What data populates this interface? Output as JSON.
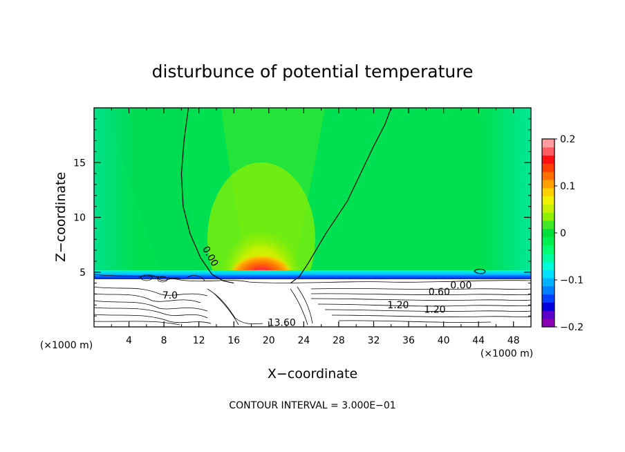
{
  "chart_data": {
    "type": "heatmap",
    "title": "disturbunce of potential temperature",
    "xlabel": "X−coordinate",
    "ylabel": "Z−coordinate",
    "x_unit_label_left": "(×1000 m)",
    "x_unit_label_right": "(×1000 m)",
    "xlim": [
      0,
      50
    ],
    "ylim": [
      0,
      20
    ],
    "xticks": [
      4,
      8,
      12,
      16,
      20,
      24,
      28,
      32,
      36,
      40,
      44,
      48
    ],
    "xtick_labels": [
      "4",
      "8",
      "12",
      "16",
      "20",
      "24",
      "28",
      "32",
      "36",
      "40",
      "44",
      "48"
    ],
    "yticks": [
      5,
      10,
      15
    ],
    "ytick_labels": [
      "5",
      "10",
      "15"
    ],
    "colorbar": {
      "min": -0.2,
      "max": 0.2,
      "tick_labels": [
        {
          "value": 0.2,
          "label": "0.2"
        },
        {
          "value": 0.1,
          "label": "0.1"
        },
        {
          "value": 0,
          "label": "0"
        },
        {
          "value": -0.1,
          "label": "−0.1"
        },
        {
          "value": -0.2,
          "label": "−0.2"
        }
      ],
      "colors": [
        "#8c00b4",
        "#5a00c8",
        "#0000dc",
        "#0040ff",
        "#0080ff",
        "#00b4ff",
        "#00e0ff",
        "#00ffd8",
        "#00ffa0",
        "#00ff70",
        "#00f050",
        "#00e03c",
        "#40e828",
        "#90f000",
        "#c8f000",
        "#f0f000",
        "#ffd000",
        "#ffa000",
        "#ff7000",
        "#ff4000",
        "#ff1010",
        "#ff5c64",
        "#ff9ca0"
      ]
    },
    "contour_labels": [
      {
        "text": "0.00",
        "x": 13.0,
        "z": 6.3,
        "angle": 60
      },
      {
        "text": "0.00",
        "x": 42.0,
        "z": 3.5,
        "angle": 0
      },
      {
        "text": "0.60",
        "x": 39.5,
        "z": 2.9,
        "angle": 0
      },
      {
        "text": "1.20",
        "x": 34.8,
        "z": 1.7,
        "angle": 0
      },
      {
        "text": "1.20",
        "x": 39.0,
        "z": 1.3,
        "angle": 0
      },
      {
        "text": "13.60",
        "x": 21.5,
        "z": 0.1,
        "angle": 0
      },
      {
        "text": "7.0",
        "x": 8.7,
        "z": 2.6,
        "angle": 0
      }
    ],
    "features": {
      "warm_anomaly": {
        "x": 19,
        "z": 4.8,
        "max": 0.2
      },
      "zero_contour_left": [
        [
          10.8,
          20
        ],
        [
          10.3,
          17
        ],
        [
          10.0,
          14
        ],
        [
          10.2,
          11
        ],
        [
          11.0,
          8.5
        ],
        [
          12.2,
          6.3
        ],
        [
          13.5,
          4.8
        ],
        [
          14.8,
          4.2
        ],
        [
          16,
          4.0
        ]
      ],
      "zero_contour_right": [
        [
          22.5,
          4.0
        ],
        [
          23.5,
          4.6
        ],
        [
          24.5,
          5.8
        ],
        [
          26.5,
          8.5
        ],
        [
          29,
          11.5
        ],
        [
          30.5,
          14
        ],
        [
          32,
          16.5
        ],
        [
          33.3,
          18.5
        ],
        [
          34,
          20
        ]
      ]
    }
  },
  "footer": {
    "contour_interval": "CONTOUR INTERVAL = 3.000E−01"
  }
}
